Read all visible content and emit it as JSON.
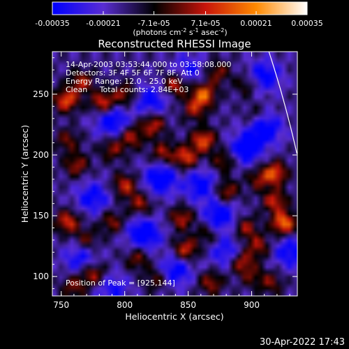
{
  "chart_data": {
    "type": "heatmap",
    "title": "Reconstructed RHESSI Image",
    "xlabel": "Heliocentric X (arcsec)",
    "ylabel": "Heliocentric Y (arcsec)",
    "xlim": [
      743,
      936
    ],
    "ylim": [
      84,
      285
    ],
    "x_ticks": [
      750,
      800,
      850,
      900
    ],
    "y_ticks": [
      100,
      150,
      200,
      250
    ],
    "colorbar": {
      "ticks": [
        -0.00035,
        -0.00021,
        -7.1e-05,
        7.1e-05,
        0.00021,
        0.00035
      ],
      "tick_labels": [
        "-0.00035",
        "-0.00021",
        "-7.1e-05",
        "7.1e-05",
        "0.00021",
        "0.00035"
      ],
      "range": [
        -0.00035,
        0.00035
      ],
      "units_label": "(photons cm",
      "units_exp1": "-2",
      "units_mid": " s",
      "units_exp2": "-1",
      "units_end": " asec",
      "units_exp3": "-2",
      "units_close": ")",
      "colors": [
        "#0000ff",
        "#5a2dd2",
        "#000000",
        "#c8140a",
        "#ff8a00",
        "#ffffff"
      ]
    },
    "annotations": [
      "14-Apr-2003 03:53:44.000 to 03:58:08.000",
      "Detectors: 3F 4F 5F 6F 7F 8F, Att 0",
      "Energy Range: 12.0 - 25.0 keV",
      "Clean     Total counts: 2.84E+03"
    ],
    "peak_label": "Position of Peak = [925,144]",
    "peak": [
      925,
      144
    ],
    "hot_spots": [
      {
        "x": 754,
        "y": 245,
        "v": 0.0003
      },
      {
        "x": 766,
        "y": 260,
        "v": 0.00022
      },
      {
        "x": 783,
        "y": 243,
        "v": 0.00028
      },
      {
        "x": 800,
        "y": 250,
        "v": 0.0002
      },
      {
        "x": 840,
        "y": 258,
        "v": 0.00026
      },
      {
        "x": 862,
        "y": 250,
        "v": 0.00032
      },
      {
        "x": 873,
        "y": 268,
        "v": 0.00018
      },
      {
        "x": 855,
        "y": 238,
        "v": 0.0002
      },
      {
        "x": 896,
        "y": 258,
        "v": 0.00014
      },
      {
        "x": 903,
        "y": 232,
        "v": 0.00012
      },
      {
        "x": 862,
        "y": 212,
        "v": 0.0003
      },
      {
        "x": 848,
        "y": 198,
        "v": 0.00028
      },
      {
        "x": 830,
        "y": 202,
        "v": 0.0002
      },
      {
        "x": 805,
        "y": 215,
        "v": 0.00022
      },
      {
        "x": 790,
        "y": 205,
        "v": 0.00018
      },
      {
        "x": 822,
        "y": 225,
        "v": 0.00024
      },
      {
        "x": 762,
        "y": 192,
        "v": 0.0002
      },
      {
        "x": 755,
        "y": 212,
        "v": 0.00016
      },
      {
        "x": 878,
        "y": 195,
        "v": 0.00018
      },
      {
        "x": 880,
        "y": 170,
        "v": 0.00022
      },
      {
        "x": 905,
        "y": 180,
        "v": 0.00016
      },
      {
        "x": 918,
        "y": 185,
        "v": 0.0003
      },
      {
        "x": 925,
        "y": 144,
        "v": 0.00035
      },
      {
        "x": 918,
        "y": 162,
        "v": 0.00024
      },
      {
        "x": 800,
        "y": 175,
        "v": 0.00024
      },
      {
        "x": 812,
        "y": 160,
        "v": 0.0002
      },
      {
        "x": 790,
        "y": 145,
        "v": 0.00018
      },
      {
        "x": 755,
        "y": 145,
        "v": 0.00026
      },
      {
        "x": 770,
        "y": 130,
        "v": 0.00016
      },
      {
        "x": 845,
        "y": 148,
        "v": 0.00022
      },
      {
        "x": 848,
        "y": 122,
        "v": 0.00026
      },
      {
        "x": 865,
        "y": 135,
        "v": 0.00014
      },
      {
        "x": 895,
        "y": 140,
        "v": 0.0002
      },
      {
        "x": 892,
        "y": 112,
        "v": 0.00024
      },
      {
        "x": 905,
        "y": 125,
        "v": 0.0002
      },
      {
        "x": 810,
        "y": 115,
        "v": 0.00018
      },
      {
        "x": 825,
        "y": 98,
        "v": 0.00016
      },
      {
        "x": 775,
        "y": 102,
        "v": 0.00024
      },
      {
        "x": 760,
        "y": 92,
        "v": 0.00018
      },
      {
        "x": 868,
        "y": 95,
        "v": 0.0002
      },
      {
        "x": 915,
        "y": 95,
        "v": 0.00016
      },
      {
        "x": 900,
        "y": 100,
        "v": 0.00012
      }
    ],
    "cold_spots": [
      {
        "x": 790,
        "y": 228,
        "v": -0.00024
      },
      {
        "x": 820,
        "y": 245,
        "v": -0.0002
      },
      {
        "x": 828,
        "y": 180,
        "v": -0.00026
      },
      {
        "x": 860,
        "y": 175,
        "v": -0.00022
      },
      {
        "x": 895,
        "y": 205,
        "v": -0.00024
      },
      {
        "x": 910,
        "y": 222,
        "v": -0.00026
      },
      {
        "x": 910,
        "y": 265,
        "v": -0.00022
      },
      {
        "x": 775,
        "y": 165,
        "v": -0.0002
      },
      {
        "x": 815,
        "y": 135,
        "v": -0.00028
      },
      {
        "x": 840,
        "y": 105,
        "v": -0.00022
      },
      {
        "x": 875,
        "y": 150,
        "v": -0.00024
      },
      {
        "x": 880,
        "y": 120,
        "v": -0.00018
      },
      {
        "x": 790,
        "y": 90,
        "v": -0.00016
      },
      {
        "x": 930,
        "y": 120,
        "v": -0.0002
      },
      {
        "x": 765,
        "y": 115,
        "v": -0.00018
      },
      {
        "x": 850,
        "y": 270,
        "v": -0.00016
      }
    ]
  },
  "timestamp": "30-Apr-2022 17:43"
}
